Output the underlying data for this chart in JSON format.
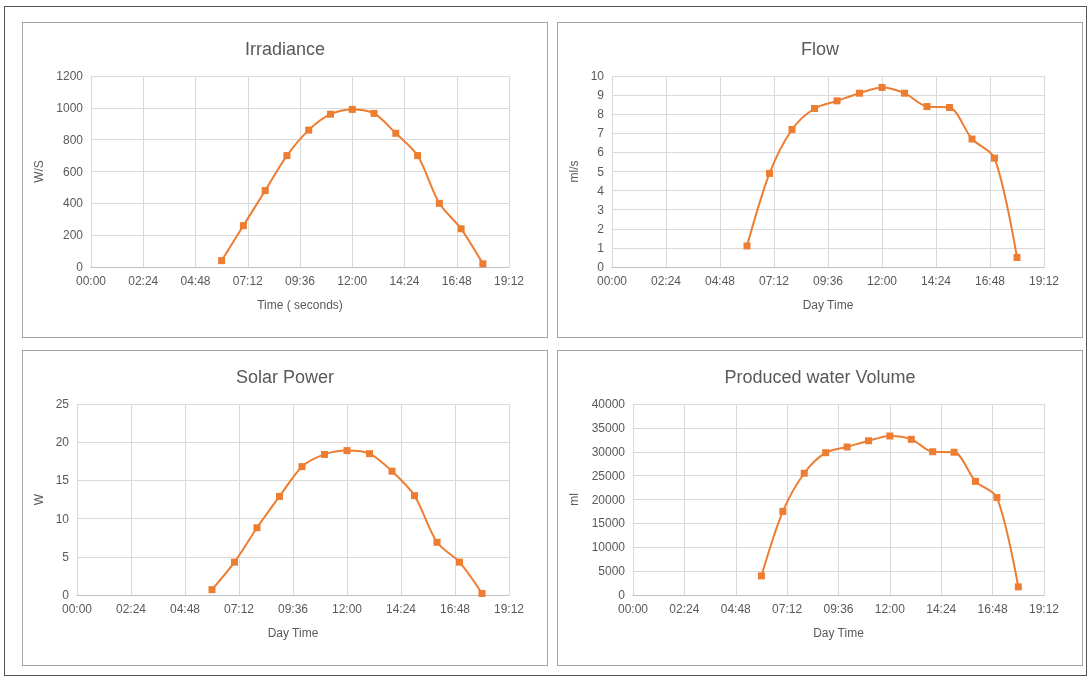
{
  "chart_data": [
    {
      "type": "line",
      "title": "Irradiance",
      "xlabel": "Time ( seconds)",
      "ylabel": "W/S",
      "x": [
        6,
        7,
        8,
        9,
        10,
        11,
        12,
        13,
        14,
        15,
        16,
        17,
        18
      ],
      "series": [
        {
          "color": "#ed7d31",
          "values": [
            40,
            260,
            480,
            700,
            860,
            960,
            990,
            965,
            840,
            700,
            400,
            240,
            20
          ]
        }
      ],
      "xlim": [
        0,
        19.2
      ],
      "xticks": [
        {
          "value": 0,
          "label": "00:00"
        },
        {
          "value": 2.4,
          "label": "02:24"
        },
        {
          "value": 4.8,
          "label": "04:48"
        },
        {
          "value": 7.2,
          "label": "07:12"
        },
        {
          "value": 9.6,
          "label": "09:36"
        },
        {
          "value": 12,
          "label": "12:00"
        },
        {
          "value": 14.4,
          "label": "14:24"
        },
        {
          "value": 16.8,
          "label": "16:48"
        },
        {
          "value": 19.2,
          "label": "19:12"
        }
      ],
      "ylim": [
        0,
        1200
      ],
      "yticks": [
        0,
        200,
        400,
        600,
        800,
        1000,
        1200
      ],
      "grid": true,
      "marker": "square",
      "line_style": "solid"
    },
    {
      "type": "line",
      "title": "Flow",
      "xlabel": "Day Time",
      "ylabel": "ml/s",
      "x": [
        6,
        7,
        8,
        9,
        10,
        11,
        12,
        13,
        14,
        15,
        16,
        17,
        18
      ],
      "series": [
        {
          "color": "#ed7d31",
          "values": [
            1.1,
            4.9,
            7.2,
            8.3,
            8.7,
            9.1,
            9.4,
            9.1,
            8.4,
            8.35,
            6.7,
            5.7,
            0.5
          ]
        }
      ],
      "xlim": [
        0,
        19.2
      ],
      "xticks": [
        {
          "value": 0,
          "label": "00:00"
        },
        {
          "value": 2.4,
          "label": "02:24"
        },
        {
          "value": 4.8,
          "label": "04:48"
        },
        {
          "value": 7.2,
          "label": "07:12"
        },
        {
          "value": 9.6,
          "label": "09:36"
        },
        {
          "value": 12,
          "label": "12:00"
        },
        {
          "value": 14.4,
          "label": "14:24"
        },
        {
          "value": 16.8,
          "label": "16:48"
        },
        {
          "value": 19.2,
          "label": "19:12"
        }
      ],
      "ylim": [
        0,
        10
      ],
      "yticks": [
        0,
        1,
        2,
        3,
        4,
        5,
        6,
        7,
        8,
        9,
        10
      ],
      "grid": true,
      "marker": "square",
      "line_style": "solid"
    },
    {
      "type": "line",
      "title": "Solar Power",
      "xlabel": "Day Time",
      "ylabel": "W",
      "x": [
        6,
        7,
        8,
        9,
        10,
        11,
        12,
        13,
        14,
        15,
        16,
        17,
        18
      ],
      "series": [
        {
          "color": "#ed7d31",
          "values": [
            0.7,
            4.3,
            8.8,
            12.9,
            16.8,
            18.4,
            18.9,
            18.5,
            16.2,
            13.0,
            6.9,
            4.3,
            0.2
          ]
        }
      ],
      "xlim": [
        0,
        19.2
      ],
      "xticks": [
        {
          "value": 0,
          "label": "00:00"
        },
        {
          "value": 2.4,
          "label": "02:24"
        },
        {
          "value": 4.8,
          "label": "04:48"
        },
        {
          "value": 7.2,
          "label": "07:12"
        },
        {
          "value": 9.6,
          "label": "09:36"
        },
        {
          "value": 12,
          "label": "12:00"
        },
        {
          "value": 14.4,
          "label": "14:24"
        },
        {
          "value": 16.8,
          "label": "16:48"
        },
        {
          "value": 19.2,
          "label": "19:12"
        }
      ],
      "ylim": [
        0,
        25
      ],
      "yticks": [
        0,
        5,
        10,
        15,
        20,
        25
      ],
      "grid": true,
      "marker": "square",
      "line_style": "solid"
    },
    {
      "type": "line",
      "title": "Produced water Volume",
      "xlabel": "Day Time",
      "ylabel": "ml",
      "x": [
        6,
        7,
        8,
        9,
        10,
        11,
        12,
        13,
        14,
        15,
        16,
        17,
        18
      ],
      "series": [
        {
          "color": "#ed7d31",
          "values": [
            4000,
            17500,
            25500,
            29800,
            31000,
            32300,
            33300,
            32600,
            30000,
            29900,
            23800,
            20400,
            1700
          ]
        }
      ],
      "xlim": [
        0,
        19.2
      ],
      "xticks": [
        {
          "value": 0,
          "label": "00:00"
        },
        {
          "value": 2.4,
          "label": "02:24"
        },
        {
          "value": 4.8,
          "label": "04:48"
        },
        {
          "value": 7.2,
          "label": "07:12"
        },
        {
          "value": 9.6,
          "label": "09:36"
        },
        {
          "value": 12,
          "label": "12:00"
        },
        {
          "value": 14.4,
          "label": "14:24"
        },
        {
          "value": 16.8,
          "label": "16:48"
        },
        {
          "value": 19.2,
          "label": "19:12"
        }
      ],
      "ylim": [
        0,
        40000
      ],
      "yticks": [
        0,
        5000,
        10000,
        15000,
        20000,
        25000,
        30000,
        35000,
        40000
      ],
      "grid": true,
      "marker": "square",
      "line_style": "solid"
    }
  ]
}
